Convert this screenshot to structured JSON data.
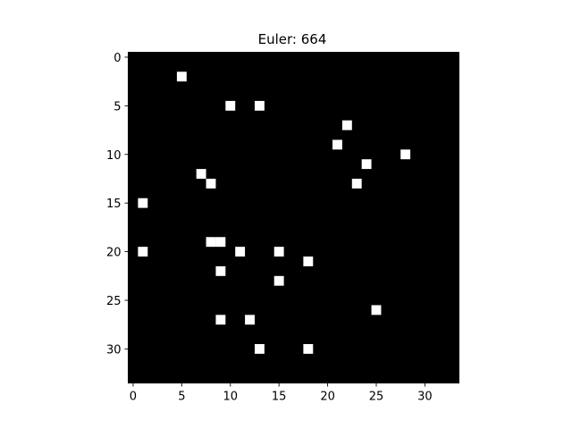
{
  "chart_data": {
    "type": "heatmap",
    "title": "Euler: 664",
    "xlabel": "",
    "ylabel": "",
    "grid_size": [
      34,
      34
    ],
    "xlim": [
      -0.5,
      33.5
    ],
    "ylim": [
      33.5,
      -0.5
    ],
    "xticks": [
      0,
      5,
      10,
      15,
      20,
      25,
      30
    ],
    "yticks": [
      0,
      5,
      10,
      15,
      20,
      25,
      30
    ],
    "colormap": "gray",
    "background_value": 0,
    "foreground_value": 1,
    "grid": false,
    "legend": "none",
    "points": [
      {
        "x": 5,
        "y": 2
      },
      {
        "x": 10,
        "y": 5
      },
      {
        "x": 13,
        "y": 5
      },
      {
        "x": 22,
        "y": 7
      },
      {
        "x": 21,
        "y": 9
      },
      {
        "x": 28,
        "y": 10
      },
      {
        "x": 24,
        "y": 11
      },
      {
        "x": 7,
        "y": 12
      },
      {
        "x": 8,
        "y": 13
      },
      {
        "x": 23,
        "y": 13
      },
      {
        "x": 1,
        "y": 15
      },
      {
        "x": 8,
        "y": 19
      },
      {
        "x": 9,
        "y": 19
      },
      {
        "x": 1,
        "y": 20
      },
      {
        "x": 11,
        "y": 20
      },
      {
        "x": 15,
        "y": 20
      },
      {
        "x": 18,
        "y": 21
      },
      {
        "x": 9,
        "y": 22
      },
      {
        "x": 15,
        "y": 23
      },
      {
        "x": 25,
        "y": 26
      },
      {
        "x": 9,
        "y": 27
      },
      {
        "x": 12,
        "y": 27
      },
      {
        "x": 13,
        "y": 30
      },
      {
        "x": 18,
        "y": 30
      }
    ]
  },
  "colors": {
    "background_cell": "#000000",
    "foreground_cell": "#ffffff",
    "axis": "#000000",
    "text": "#000000"
  }
}
